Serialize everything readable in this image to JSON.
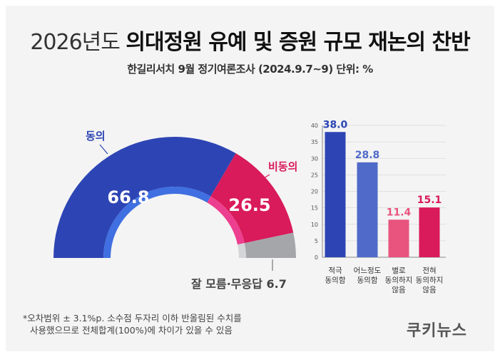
{
  "title": {
    "light": "2026년도",
    "bold": "의대정원 유예 및 증원 규모 재논의 찬반"
  },
  "subtitle": "한길리서치 9월 정기여론조사 (2024.9.7~9) 단위: %",
  "colors": {
    "agree": "#2d45b4",
    "agree_inner": "#3f6fe0",
    "disagree": "#d91a5b",
    "disagree_inner": "#ec3f8f",
    "unknown": "#a5a6aa",
    "unknown_inner": "#d4d5d8",
    "bar_blue": "#2d45b4",
    "bar_lightblue": "#4f6ac8",
    "bar_pink": "#e8547e",
    "bar_red": "#d91a5b"
  },
  "chart_data": [
    {
      "type": "pie",
      "subtype": "half-donut",
      "slices": [
        {
          "label": "동의",
          "value": 66.8,
          "value_label": "66.8"
        },
        {
          "label": "비동의",
          "value": 26.5,
          "value_label": "26.5"
        },
        {
          "label": "잘 모름·무응답",
          "value": 6.7,
          "value_label": "6.7"
        }
      ]
    },
    {
      "type": "bar",
      "categories": [
        {
          "line1": "적극",
          "line2": "동의함",
          "line3": ""
        },
        {
          "line1": "어느정도",
          "line2": "동의함",
          "line3": ""
        },
        {
          "line1": "별로",
          "line2": "동의하지",
          "line3": "않음"
        },
        {
          "line1": "전혀",
          "line2": "동의하지",
          "line3": "않음"
        }
      ],
      "values": [
        38.0,
        28.8,
        11.4,
        15.1
      ],
      "value_labels": [
        "38.0",
        "28.8",
        "11.4",
        "15.1"
      ],
      "ylim": [
        0,
        40
      ],
      "yticks": [
        "0",
        "5",
        "10",
        "15",
        "20",
        "25",
        "30",
        "35",
        "40"
      ]
    }
  ],
  "note": {
    "line1": "*오차범위 ± 3.1%p. 소수점 두자리 이하 반올림된 수치를",
    "line2": "사용했으므로 전체합계(100%)에 차이가 있을 수 있음"
  },
  "brand": "쿠키뉴스"
}
